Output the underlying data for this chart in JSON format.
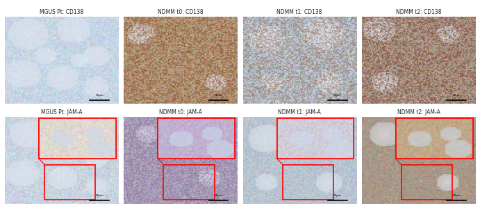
{
  "title_top": [
    "MGUS Pt: CD138",
    "NDMM t0: CD138",
    "NDMM t1: CD138",
    "NDMM t2: CD138"
  ],
  "title_bottom": [
    "MGUS Pt: JAM-A",
    "NDMM t0: JAM-A",
    "NDMM t1: JAM-A",
    "NDMM t2: JAM-A"
  ],
  "n_cols": 4,
  "n_rows": 2,
  "bg_color": "#ffffff",
  "title_fontsize": 5.5,
  "title_color": "#222222",
  "fig_width": 6.91,
  "fig_height": 2.99,
  "image_bg_top": [
    "#b8c8d8",
    "#c8a878",
    "#a8b8c8",
    "#b8a898"
  ],
  "image_bg_bottom": [
    "#c0ccd8",
    "#b8a8c0",
    "#b8c0cc",
    "#b0a898"
  ]
}
